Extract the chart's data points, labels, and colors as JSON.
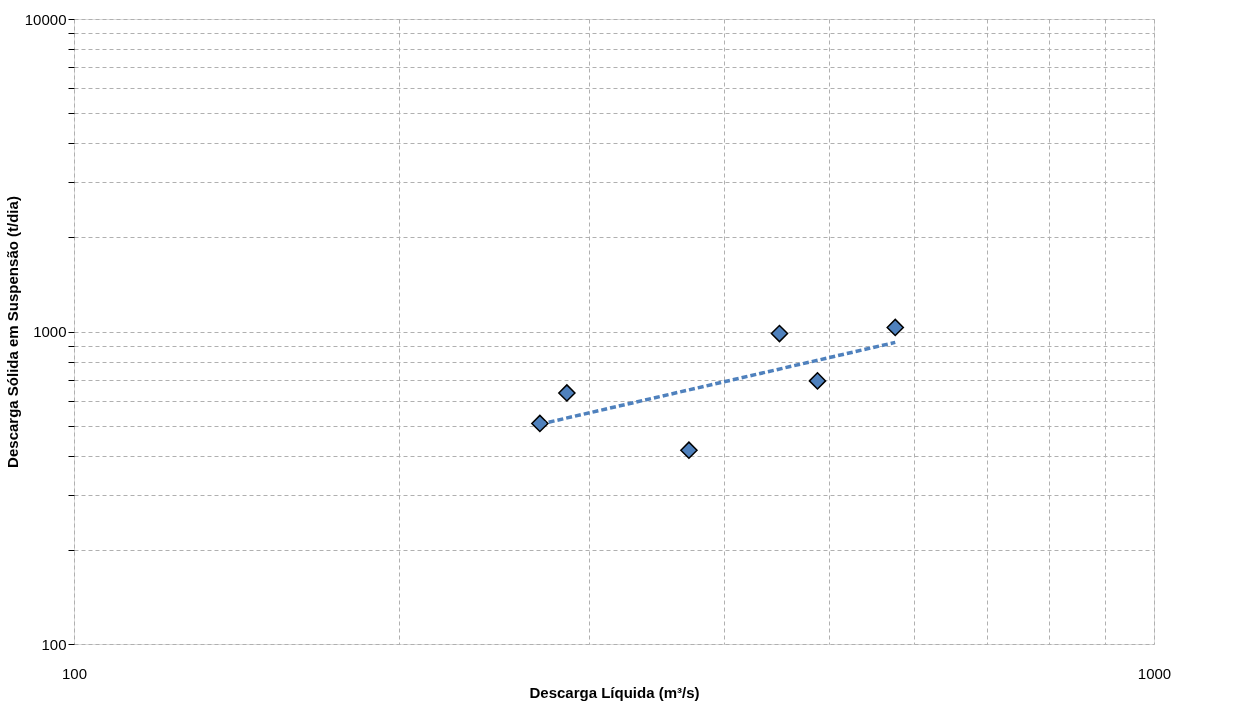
{
  "chart_data": {
    "type": "scatter",
    "xlabel": "Descarga Líquida (m³/s)",
    "ylabel": "Descarga Sólida em Suspensão (t/dia)",
    "log": "xy",
    "grid": true,
    "marker": "diamond",
    "xlim": [
      100,
      1000
    ],
    "ylim": [
      100,
      10000
    ],
    "xticks": [
      100,
      {
        "value": 200,
        "label": null
      },
      {
        "value": 300,
        "label": null
      },
      {
        "value": 400,
        "label": null
      },
      {
        "value": 500,
        "label": null
      },
      {
        "value": 600,
        "label": null
      },
      {
        "value": 700,
        "label": null
      },
      {
        "value": 800,
        "label": null
      },
      {
        "value": 900,
        "label": null
      },
      1000
    ],
    "yticks": [
      100,
      {
        "value": 200,
        "label": null
      },
      {
        "value": 300,
        "label": null
      },
      {
        "value": 400,
        "label": null
      },
      {
        "value": 500,
        "label": null
      },
      {
        "value": 600,
        "label": null
      },
      {
        "value": 700,
        "label": null
      },
      {
        "value": 800,
        "label": null
      },
      {
        "value": 900,
        "label": null
      },
      1000,
      {
        "value": 2000,
        "label": null
      },
      {
        "value": 3000,
        "label": null
      },
      {
        "value": 4000,
        "label": null
      },
      {
        "value": 5000,
        "label": null
      },
      {
        "value": 6000,
        "label": null
      },
      {
        "value": 7000,
        "label": null
      },
      {
        "value": 8000,
        "label": null
      },
      {
        "value": 9000,
        "label": null
      },
      10000
    ],
    "series": [
      {
        "color": "#4f81bd",
        "x": [
          270,
          286,
          371,
          450,
          488,
          576
        ],
        "values": [
          508,
          636,
          417,
          985,
          695,
          1030
        ]
      },
      {
        "type": "line",
        "color": "#4f81bd",
        "line_style": "dashed",
        "marker": "none",
        "x": [
          270,
          576
        ],
        "values": [
          505,
          923
        ]
      }
    ]
  }
}
